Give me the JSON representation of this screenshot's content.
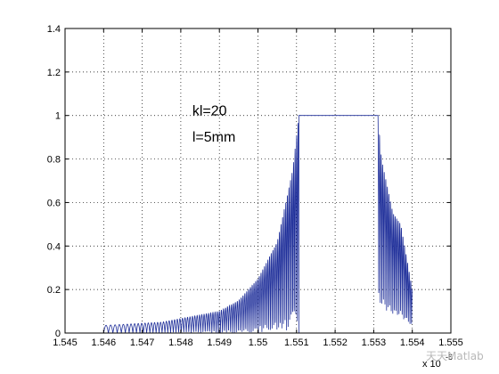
{
  "chart_data": {
    "type": "line",
    "title": "",
    "xlabel": "",
    "ylabel": "",
    "xlim": [
      1.545,
      1.555
    ],
    "ylim": [
      0,
      1.4
    ],
    "x_scale_label": "x 10",
    "x_scale_exponent": "-6",
    "x_ticks": [
      1.545,
      1.546,
      1.547,
      1.548,
      1.549,
      1.55,
      1.551,
      1.552,
      1.553,
      1.554,
      1.555
    ],
    "x_tick_labels": [
      "1.545",
      "1.546",
      "1.547",
      "1.548",
      "1.549",
      "1.55",
      "1.551",
      "1.552",
      "1.553",
      "1.554",
      "1.555"
    ],
    "y_ticks": [
      0,
      0.2,
      0.4,
      0.6,
      0.8,
      1,
      1.2,
      1.4
    ],
    "y_tick_labels": [
      "0",
      "0.2",
      "0.4",
      "0.6",
      "0.8",
      "1",
      "1.2",
      "1.4"
    ],
    "grid": true,
    "line_color": "#1f2f9a",
    "annotations": [
      "kl=20",
      "l=5mm"
    ],
    "series": [
      {
        "x_range": [
          1.546,
          1.554
        ],
        "flat_top": [
          1.55106,
          1.55311
        ],
        "peak_level": 1.0,
        "envelope_left": [
          [
            1.546,
            0.035
          ],
          [
            1.5475,
            0.05
          ],
          [
            1.549,
            0.1
          ],
          [
            1.5495,
            0.15
          ],
          [
            1.55,
            0.25
          ],
          [
            1.5505,
            0.42
          ],
          [
            1.5509,
            0.75
          ],
          [
            1.55106,
            1.0
          ]
        ],
        "envelope_right": [
          [
            1.55311,
            1.0
          ],
          [
            1.5532,
            0.8
          ],
          [
            1.5535,
            0.55
          ],
          [
            1.5537,
            0.5
          ],
          [
            1.5539,
            0.3
          ],
          [
            1.554,
            0.2
          ]
        ],
        "samples": [
          [
            1.546,
            0.035
          ],
          [
            1.5465,
            0.04
          ],
          [
            1.547,
            0.045
          ],
          [
            1.5475,
            0.05
          ],
          [
            1.548,
            0.06
          ],
          [
            1.5485,
            0.075
          ],
          [
            1.549,
            0.1
          ],
          [
            1.5495,
            0.15
          ],
          [
            1.55,
            0.25
          ],
          [
            1.5505,
            0.42
          ],
          [
            1.5509,
            0.75
          ],
          [
            1.55106,
            1.0
          ],
          [
            1.552,
            1.0
          ],
          [
            1.55311,
            1.0
          ],
          [
            1.5532,
            0.8
          ],
          [
            1.5535,
            0.55
          ],
          [
            1.5537,
            0.5
          ],
          [
            1.5539,
            0.3
          ],
          [
            1.554,
            0.2
          ]
        ]
      }
    ]
  },
  "watermark": "天天Matlab"
}
